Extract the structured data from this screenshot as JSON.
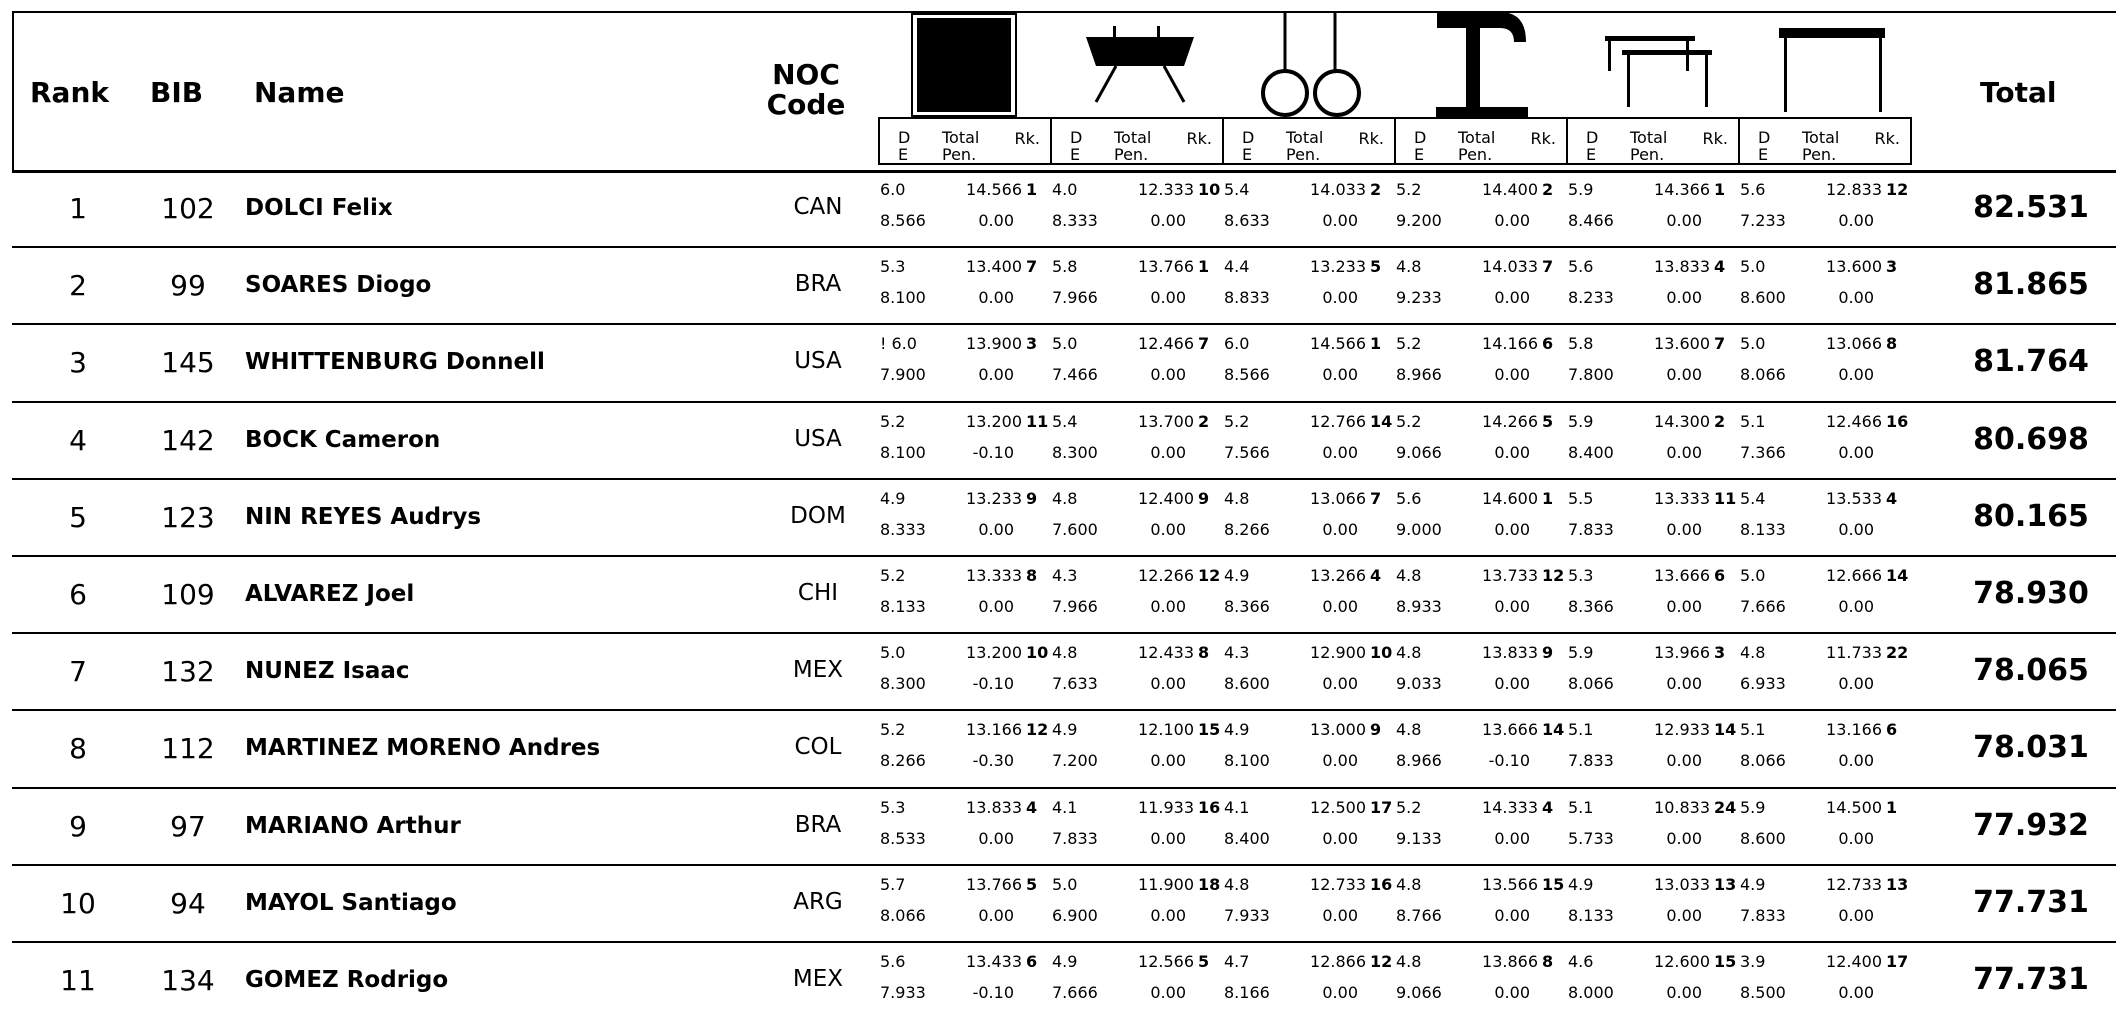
{
  "header": {
    "rank": "Rank",
    "bib": "BIB",
    "name": "Name",
    "noc_line1": "NOC",
    "noc_line2": "Code",
    "total": "Total"
  },
  "subheader": {
    "d": "D",
    "e": "E",
    "total": "Total",
    "pen": "Pen.",
    "rk": "Rk."
  },
  "apparatus_icons": [
    "floor-exercise-icon",
    "pommel-horse-icon",
    "still-rings-icon",
    "vault-icon",
    "parallel-bars-icon",
    "horizontal-bar-icon"
  ],
  "rows": [
    {
      "rank": "1",
      "bib": "102",
      "name": "DOLCI Felix",
      "noc": "CAN",
      "total": "82.531",
      "apps": [
        {
          "d": "6.0",
          "e": "8.566",
          "total": "14.566",
          "pen": "0.00",
          "rk": "1"
        },
        {
          "d": "4.0",
          "e": "8.333",
          "total": "12.333",
          "pen": "0.00",
          "rk": "10"
        },
        {
          "d": "5.4",
          "e": "8.633",
          "total": "14.033",
          "pen": "0.00",
          "rk": "2"
        },
        {
          "d": "5.2",
          "e": "9.200",
          "total": "14.400",
          "pen": "0.00",
          "rk": "2"
        },
        {
          "d": "5.9",
          "e": "8.466",
          "total": "14.366",
          "pen": "0.00",
          "rk": "1"
        },
        {
          "d": "5.6",
          "e": "7.233",
          "total": "12.833",
          "pen": "0.00",
          "rk": "12"
        }
      ]
    },
    {
      "rank": "2",
      "bib": "99",
      "name": "SOARES Diogo",
      "noc": "BRA",
      "total": "81.865",
      "apps": [
        {
          "d": "5.3",
          "e": "8.100",
          "total": "13.400",
          "pen": "0.00",
          "rk": "7"
        },
        {
          "d": "5.8",
          "e": "7.966",
          "total": "13.766",
          "pen": "0.00",
          "rk": "1"
        },
        {
          "d": "4.4",
          "e": "8.833",
          "total": "13.233",
          "pen": "0.00",
          "rk": "5"
        },
        {
          "d": "4.8",
          "e": "9.233",
          "total": "14.033",
          "pen": "0.00",
          "rk": "7"
        },
        {
          "d": "5.6",
          "e": "8.233",
          "total": "13.833",
          "pen": "0.00",
          "rk": "4"
        },
        {
          "d": "5.0",
          "e": "8.600",
          "total": "13.600",
          "pen": "0.00",
          "rk": "3"
        }
      ]
    },
    {
      "rank": "3",
      "bib": "145",
      "name": "WHITTENBURG Donnell",
      "noc": "USA",
      "total": "81.764",
      "apps": [
        {
          "d": "! 6.0",
          "e": "7.900",
          "total": "13.900",
          "pen": "0.00",
          "rk": "3"
        },
        {
          "d": "5.0",
          "e": "7.466",
          "total": "12.466",
          "pen": "0.00",
          "rk": "7"
        },
        {
          "d": "6.0",
          "e": "8.566",
          "total": "14.566",
          "pen": "0.00",
          "rk": "1"
        },
        {
          "d": "5.2",
          "e": "8.966",
          "total": "14.166",
          "pen": "0.00",
          "rk": "6"
        },
        {
          "d": "5.8",
          "e": "7.800",
          "total": "13.600",
          "pen": "0.00",
          "rk": "7"
        },
        {
          "d": "5.0",
          "e": "8.066",
          "total": "13.066",
          "pen": "0.00",
          "rk": "8"
        }
      ]
    },
    {
      "rank": "4",
      "bib": "142",
      "name": "BOCK Cameron",
      "noc": "USA",
      "total": "80.698",
      "apps": [
        {
          "d": "5.2",
          "e": "8.100",
          "total": "13.200",
          "pen": "-0.10",
          "rk": "11"
        },
        {
          "d": "5.4",
          "e": "8.300",
          "total": "13.700",
          "pen": "0.00",
          "rk": "2"
        },
        {
          "d": "5.2",
          "e": "7.566",
          "total": "12.766",
          "pen": "0.00",
          "rk": "14"
        },
        {
          "d": "5.2",
          "e": "9.066",
          "total": "14.266",
          "pen": "0.00",
          "rk": "5"
        },
        {
          "d": "5.9",
          "e": "8.400",
          "total": "14.300",
          "pen": "0.00",
          "rk": "2"
        },
        {
          "d": "5.1",
          "e": "7.366",
          "total": "12.466",
          "pen": "0.00",
          "rk": "16"
        }
      ]
    },
    {
      "rank": "5",
      "bib": "123",
      "name": "NIN REYES Audrys",
      "noc": "DOM",
      "total": "80.165",
      "apps": [
        {
          "d": "4.9",
          "e": "8.333",
          "total": "13.233",
          "pen": "0.00",
          "rk": "9"
        },
        {
          "d": "4.8",
          "e": "7.600",
          "total": "12.400",
          "pen": "0.00",
          "rk": "9"
        },
        {
          "d": "4.8",
          "e": "8.266",
          "total": "13.066",
          "pen": "0.00",
          "rk": "7"
        },
        {
          "d": "5.6",
          "e": "9.000",
          "total": "14.600",
          "pen": "0.00",
          "rk": "1"
        },
        {
          "d": "5.5",
          "e": "7.833",
          "total": "13.333",
          "pen": "0.00",
          "rk": "11"
        },
        {
          "d": "5.4",
          "e": "8.133",
          "total": "13.533",
          "pen": "0.00",
          "rk": "4"
        }
      ]
    },
    {
      "rank": "6",
      "bib": "109",
      "name": "ALVAREZ Joel",
      "noc": "CHI",
      "total": "78.930",
      "apps": [
        {
          "d": "5.2",
          "e": "8.133",
          "total": "13.333",
          "pen": "0.00",
          "rk": "8"
        },
        {
          "d": "4.3",
          "e": "7.966",
          "total": "12.266",
          "pen": "0.00",
          "rk": "12"
        },
        {
          "d": "4.9",
          "e": "8.366",
          "total": "13.266",
          "pen": "0.00",
          "rk": "4"
        },
        {
          "d": "4.8",
          "e": "8.933",
          "total": "13.733",
          "pen": "0.00",
          "rk": "12"
        },
        {
          "d": "5.3",
          "e": "8.366",
          "total": "13.666",
          "pen": "0.00",
          "rk": "6"
        },
        {
          "d": "5.0",
          "e": "7.666",
          "total": "12.666",
          "pen": "0.00",
          "rk": "14"
        }
      ]
    },
    {
      "rank": "7",
      "bib": "132",
      "name": "NUNEZ Isaac",
      "noc": "MEX",
      "total": "78.065",
      "apps": [
        {
          "d": "5.0",
          "e": "8.300",
          "total": "13.200",
          "pen": "-0.10",
          "rk": "10"
        },
        {
          "d": "4.8",
          "e": "7.633",
          "total": "12.433",
          "pen": "0.00",
          "rk": "8"
        },
        {
          "d": "4.3",
          "e": "8.600",
          "total": "12.900",
          "pen": "0.00",
          "rk": "10"
        },
        {
          "d": "4.8",
          "e": "9.033",
          "total": "13.833",
          "pen": "0.00",
          "rk": "9"
        },
        {
          "d": "5.9",
          "e": "8.066",
          "total": "13.966",
          "pen": "0.00",
          "rk": "3"
        },
        {
          "d": "4.8",
          "e": "6.933",
          "total": "11.733",
          "pen": "0.00",
          "rk": "22"
        }
      ]
    },
    {
      "rank": "8",
      "bib": "112",
      "name": "MARTINEZ MORENO Andres",
      "noc": "COL",
      "total": "78.031",
      "apps": [
        {
          "d": "5.2",
          "e": "8.266",
          "total": "13.166",
          "pen": "-0.30",
          "rk": "12"
        },
        {
          "d": "4.9",
          "e": "7.200",
          "total": "12.100",
          "pen": "0.00",
          "rk": "15"
        },
        {
          "d": "4.9",
          "e": "8.100",
          "total": "13.000",
          "pen": "0.00",
          "rk": "9"
        },
        {
          "d": "4.8",
          "e": "8.966",
          "total": "13.666",
          "pen": "-0.10",
          "rk": "14"
        },
        {
          "d": "5.1",
          "e": "7.833",
          "total": "12.933",
          "pen": "0.00",
          "rk": "14"
        },
        {
          "d": "5.1",
          "e": "8.066",
          "total": "13.166",
          "pen": "0.00",
          "rk": "6"
        }
      ]
    },
    {
      "rank": "9",
      "bib": "97",
      "name": "MARIANO Arthur",
      "noc": "BRA",
      "total": "77.932",
      "apps": [
        {
          "d": "5.3",
          "e": "8.533",
          "total": "13.833",
          "pen": "0.00",
          "rk": "4"
        },
        {
          "d": "4.1",
          "e": "7.833",
          "total": "11.933",
          "pen": "0.00",
          "rk": "16"
        },
        {
          "d": "4.1",
          "e": "8.400",
          "total": "12.500",
          "pen": "0.00",
          "rk": "17"
        },
        {
          "d": "5.2",
          "e": "9.133",
          "total": "14.333",
          "pen": "0.00",
          "rk": "4"
        },
        {
          "d": "5.1",
          "e": "5.733",
          "total": "10.833",
          "pen": "0.00",
          "rk": "24"
        },
        {
          "d": "5.9",
          "e": "8.600",
          "total": "14.500",
          "pen": "0.00",
          "rk": "1"
        }
      ]
    },
    {
      "rank": "10",
      "bib": "94",
      "name": "MAYOL Santiago",
      "noc": "ARG",
      "total": "77.731",
      "apps": [
        {
          "d": "5.7",
          "e": "8.066",
          "total": "13.766",
          "pen": "0.00",
          "rk": "5"
        },
        {
          "d": "5.0",
          "e": "6.900",
          "total": "11.900",
          "pen": "0.00",
          "rk": "18"
        },
        {
          "d": "4.8",
          "e": "7.933",
          "total": "12.733",
          "pen": "0.00",
          "rk": "16"
        },
        {
          "d": "4.8",
          "e": "8.766",
          "total": "13.566",
          "pen": "0.00",
          "rk": "15"
        },
        {
          "d": "4.9",
          "e": "8.133",
          "total": "13.033",
          "pen": "0.00",
          "rk": "13"
        },
        {
          "d": "4.9",
          "e": "7.833",
          "total": "12.733",
          "pen": "0.00",
          "rk": "13"
        }
      ]
    },
    {
      "rank": "11",
      "bib": "134",
      "name": "GOMEZ Rodrigo",
      "noc": "MEX",
      "total": "77.731",
      "apps": [
        {
          "d": "5.6",
          "e": "7.933",
          "total": "13.433",
          "pen": "-0.10",
          "rk": "6"
        },
        {
          "d": "4.9",
          "e": "7.666",
          "total": "12.566",
          "pen": "0.00",
          "rk": "5"
        },
        {
          "d": "4.7",
          "e": "8.166",
          "total": "12.866",
          "pen": "0.00",
          "rk": "12"
        },
        {
          "d": "4.8",
          "e": "9.066",
          "total": "13.866",
          "pen": "0.00",
          "rk": "8"
        },
        {
          "d": "4.6",
          "e": "8.000",
          "total": "12.600",
          "pen": "0.00",
          "rk": "15"
        },
        {
          "d": "3.9",
          "e": "8.500",
          "total": "12.400",
          "pen": "0.00",
          "rk": "17"
        }
      ]
    }
  ]
}
